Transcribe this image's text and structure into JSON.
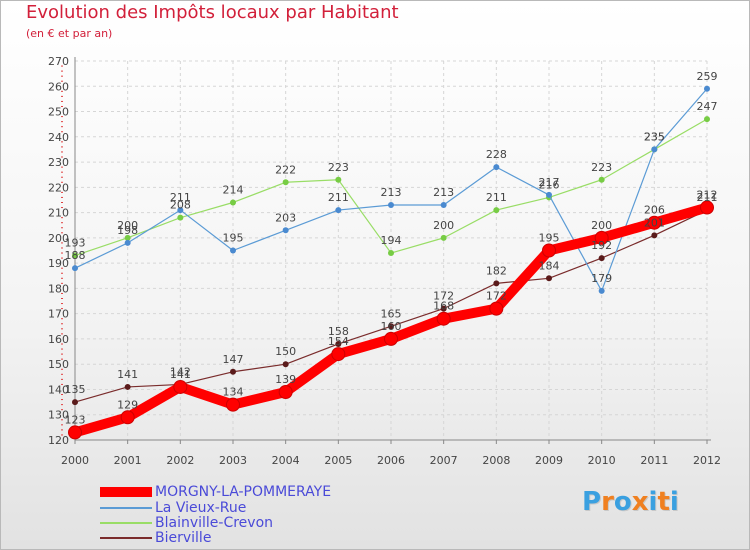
{
  "title": "Evolution des Impôts locaux par Habitant",
  "subtitle": "(en € et par an)",
  "brand": "Proxiti",
  "chart_data": {
    "type": "line",
    "x": [
      2000,
      2001,
      2002,
      2003,
      2004,
      2005,
      2006,
      2007,
      2008,
      2009,
      2010,
      2011,
      2012
    ],
    "x_tick_labels": [
      "2000",
      "2001",
      "2002",
      "2003",
      "2004",
      "2005",
      "2006",
      "2007",
      "2008",
      "2009",
      "2010",
      "2011",
      "2012"
    ],
    "ylim": [
      120,
      270
    ],
    "y_ticks": [
      120,
      130,
      140,
      150,
      160,
      170,
      180,
      190,
      200,
      210,
      220,
      230,
      240,
      250,
      260,
      270
    ],
    "grid": true,
    "legend_position": "bottom-left",
    "series": [
      {
        "name": "MORGNY-LA-POMMERAYE",
        "color": "#ff0000",
        "width": 10,
        "marker": "#cc0000",
        "values": [
          123,
          129,
          141,
          134,
          139,
          154,
          160,
          168,
          172,
          195,
          200,
          206,
          212
        ],
        "labels": [
          "123",
          "129",
          "141",
          "134",
          "139",
          "154",
          "160",
          "168",
          "172",
          "195",
          "200",
          "206",
          "212"
        ]
      },
      {
        "name": "La Vieux-Rue",
        "color": "#5b9bd5",
        "width": 1.2,
        "marker": "#4a8ad0",
        "values": [
          188,
          198,
          211,
          195,
          203,
          211,
          213,
          213,
          228,
          217,
          179,
          235,
          259
        ],
        "labels": [
          "188",
          "198",
          "211",
          "195",
          "203",
          "211",
          "213",
          "213",
          "228",
          "217",
          "179",
          "235",
          "259"
        ]
      },
      {
        "name": "Blainville-Crevon",
        "color": "#99dd66",
        "width": 1.2,
        "marker": "#77cc44",
        "values": [
          193,
          200,
          208,
          214,
          222,
          223,
          194,
          200,
          211,
          216,
          223,
          235,
          247
        ],
        "labels": [
          "193",
          "200",
          "208",
          "214",
          "222",
          "223",
          "194",
          "200",
          "211",
          "216",
          "223",
          "235",
          "247"
        ]
      },
      {
        "name": "Bierville",
        "color": "#7a2c2c",
        "width": 1.2,
        "marker": "#5a1a1a",
        "values": [
          135,
          141,
          142,
          147,
          150,
          158,
          165,
          172,
          182,
          184,
          192,
          201,
          211
        ],
        "labels": [
          "135",
          "141",
          "142",
          "147",
          "150",
          "158",
          "165",
          "172",
          "182",
          "184",
          "192",
          "201",
          "211"
        ]
      }
    ]
  }
}
